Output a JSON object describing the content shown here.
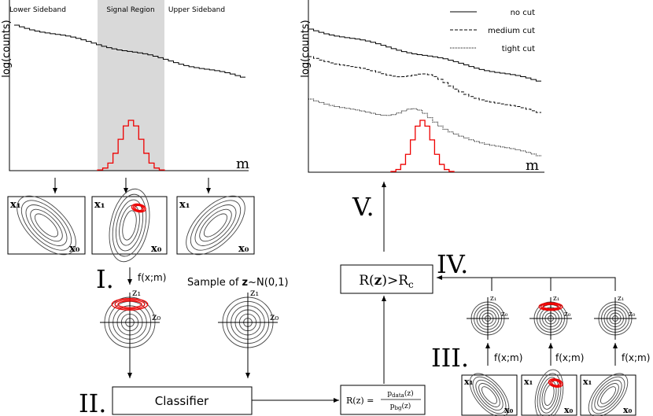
{
  "left_plot": {
    "regions": [
      "Lower Sideband",
      "Signal Region",
      "Upper Sideband"
    ],
    "y_label": "log(counts)",
    "x_label": "m"
  },
  "right_plot": {
    "legend": [
      "no cut",
      "medium cut",
      "tight cut"
    ],
    "y_label": "log(counts)",
    "x_label": "m"
  },
  "contour_boxes_top": [
    {
      "y_label": "x₁",
      "x_label": "x₀"
    },
    {
      "y_label": "x₁",
      "x_label": "x₀"
    },
    {
      "y_label": "x₁",
      "x_label": "x₀"
    }
  ],
  "contour_boxes_bottom": [
    {
      "y_label": "x₁",
      "x_label": "x₀"
    },
    {
      "y_label": "x₁",
      "x_label": "x₀"
    },
    {
      "y_label": "x₁",
      "x_label": "x₀"
    }
  ],
  "steps": {
    "I": "I.",
    "II": "II.",
    "III": "III.",
    "IV": "IV.",
    "V": "V."
  },
  "flow_labels": [
    "f(x;m)",
    "f(x;m)",
    "f(x;m)",
    "f(x;m)"
  ],
  "sample_label": {
    "text": "Sample of ",
    "bold": "z",
    "rest": "~N(0,1)"
  },
  "latent_axes": [
    {
      "y": "z₁",
      "x": "z₀"
    },
    {
      "y": "z₁",
      "x": "z₀"
    },
    {
      "y": "z₁",
      "x": "z₀"
    },
    {
      "y": "z₁",
      "x": "z₀"
    },
    {
      "y": "z₁",
      "x": "z₀"
    }
  ],
  "classifier": "Classifier",
  "ratio": {
    "lhs": "R(z) =",
    "num": "p",
    "num_sub": "data",
    "num_arg": "(z)",
    "den": "p",
    "den_sub": "bg",
    "den_arg": "(z)"
  },
  "cut": {
    "lhs": "R(",
    "bold": "z",
    "mid": ")>R",
    "sub": "c"
  }
}
